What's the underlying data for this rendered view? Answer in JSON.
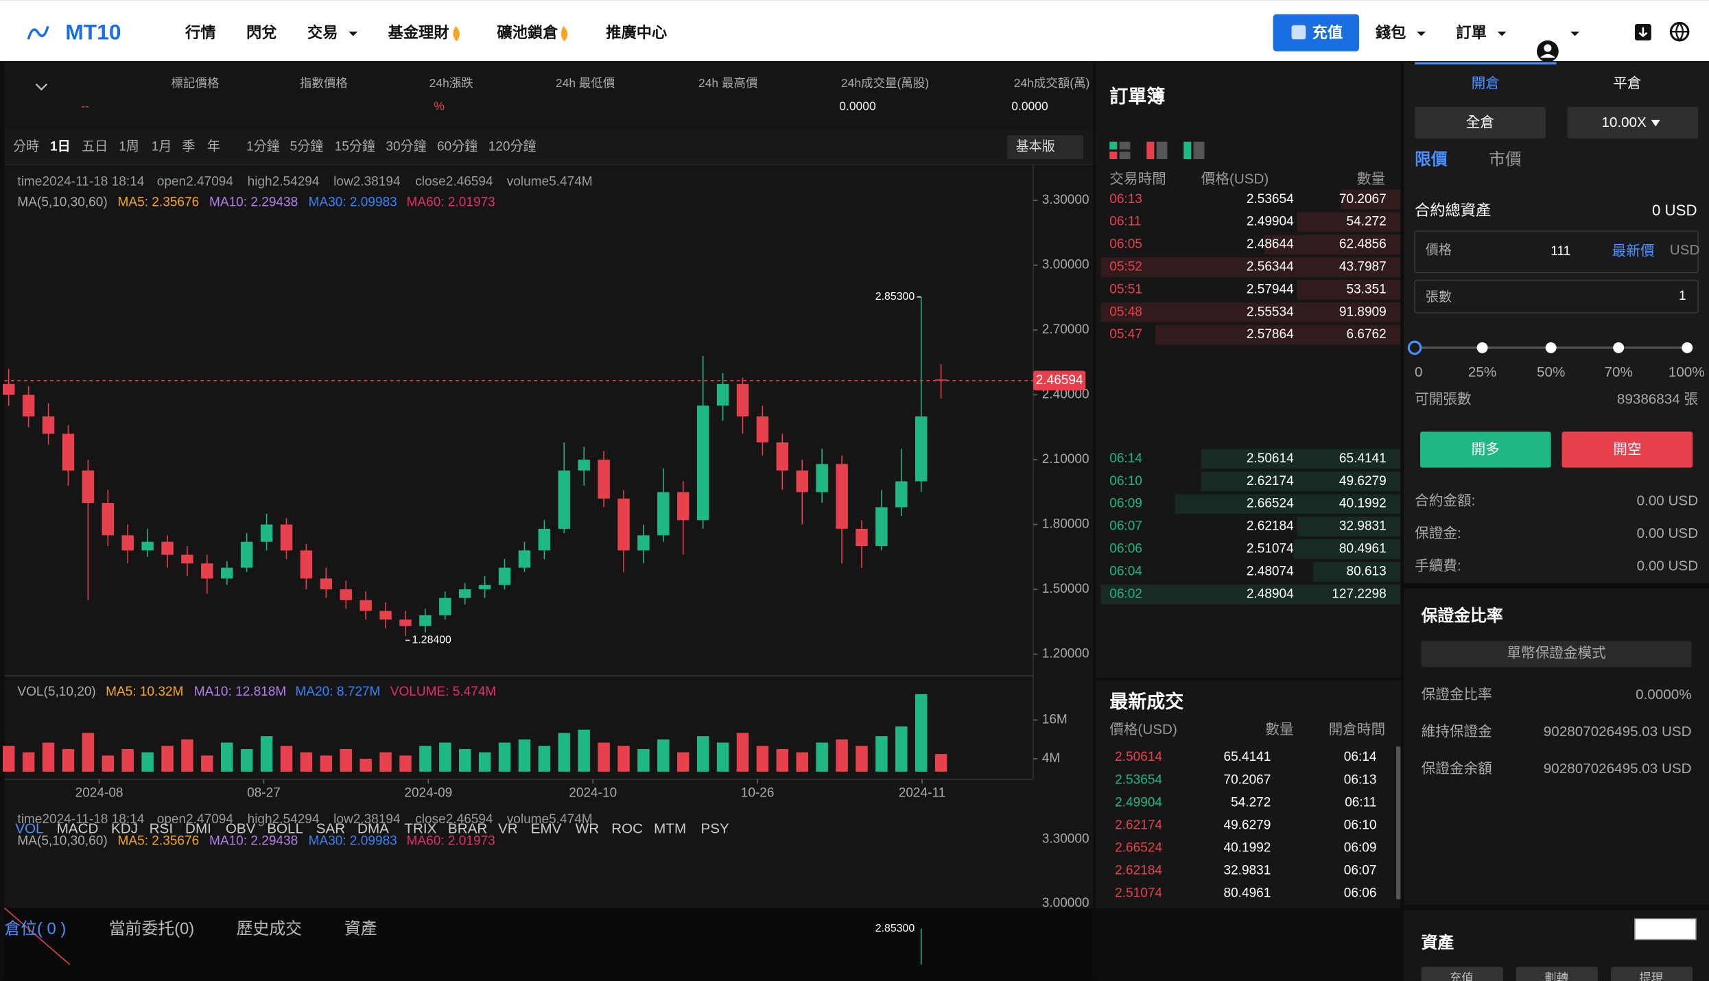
{
  "header": {
    "logo": "MT10",
    "nav": [
      "行情",
      "閃兌",
      "交易",
      "基金理財",
      "礦池鎖倉",
      "推廣中心"
    ],
    "deposit": "充值",
    "wallet": "錢包",
    "orders": "訂單"
  },
  "ticker": {
    "labels": [
      "標記價格",
      "指數價格",
      "24h漲跌",
      "24h 最低價",
      "24h 最高價",
      "24h成交量(萬股)",
      "24h成交額(萬)"
    ],
    "mark_price": "--",
    "change": "%",
    "volume": "0.0000",
    "turnover": "0.0000"
  },
  "toolbar": {
    "intervals": [
      "分時",
      "1日",
      "五日",
      "1周",
      "1月",
      "季",
      "年",
      "1分鐘",
      "5分鐘",
      "15分鐘",
      "30分鐘",
      "60分鐘",
      "120分鐘"
    ],
    "basic_mode": "基本版"
  },
  "chart": {
    "type": "candlestick",
    "info": [
      "time2024-11-18 18:14",
      "open2.47094",
      "high2.54294",
      "low2.38194",
      "close2.46594",
      "volume5.474M"
    ],
    "ma_legend": [
      "MA(5,10,30,60)",
      "MA5: 2.35676",
      "MA10: 2.29438",
      "MA30: 2.09983",
      "MA60: 2.01973"
    ],
    "ohlc": [
      [
        2.45,
        2.52,
        2.35,
        2.4
      ],
      [
        2.4,
        2.44,
        2.25,
        2.3
      ],
      [
        2.3,
        2.36,
        2.17,
        2.22
      ],
      [
        2.22,
        2.26,
        1.98,
        2.05
      ],
      [
        2.05,
        2.1,
        1.45,
        1.9
      ],
      [
        1.9,
        1.96,
        1.7,
        1.75
      ],
      [
        1.75,
        1.8,
        1.62,
        1.68
      ],
      [
        1.68,
        1.78,
        1.65,
        1.72
      ],
      [
        1.72,
        1.75,
        1.6,
        1.66
      ],
      [
        1.66,
        1.7,
        1.56,
        1.62
      ],
      [
        1.62,
        1.66,
        1.48,
        1.55
      ],
      [
        1.55,
        1.63,
        1.52,
        1.6
      ],
      [
        1.6,
        1.76,
        1.58,
        1.72
      ],
      [
        1.72,
        1.85,
        1.68,
        1.8
      ],
      [
        1.8,
        1.83,
        1.64,
        1.68
      ],
      [
        1.68,
        1.71,
        1.5,
        1.55
      ],
      [
        1.55,
        1.6,
        1.46,
        1.5
      ],
      [
        1.5,
        1.54,
        1.41,
        1.45
      ],
      [
        1.45,
        1.49,
        1.36,
        1.4
      ],
      [
        1.4,
        1.44,
        1.32,
        1.36
      ],
      [
        1.36,
        1.4,
        1.284,
        1.33
      ],
      [
        1.33,
        1.41,
        1.3,
        1.38
      ],
      [
        1.38,
        1.49,
        1.36,
        1.46
      ],
      [
        1.46,
        1.53,
        1.43,
        1.5
      ],
      [
        1.5,
        1.56,
        1.46,
        1.52
      ],
      [
        1.52,
        1.64,
        1.5,
        1.6
      ],
      [
        1.6,
        1.72,
        1.58,
        1.68
      ],
      [
        1.68,
        1.82,
        1.64,
        1.78
      ],
      [
        1.78,
        2.18,
        1.76,
        2.05
      ],
      [
        2.05,
        2.16,
        1.98,
        2.1
      ],
      [
        2.1,
        2.14,
        1.88,
        1.92
      ],
      [
        1.92,
        1.96,
        1.58,
        1.68
      ],
      [
        1.68,
        1.8,
        1.62,
        1.75
      ],
      [
        1.75,
        2.06,
        1.72,
        1.95
      ],
      [
        1.95,
        2.0,
        1.66,
        1.82
      ],
      [
        1.82,
        2.58,
        1.78,
        2.35
      ],
      [
        2.35,
        2.5,
        2.28,
        2.45
      ],
      [
        2.45,
        2.48,
        2.22,
        2.3
      ],
      [
        2.3,
        2.35,
        2.12,
        2.18
      ],
      [
        2.18,
        2.22,
        1.96,
        2.05
      ],
      [
        2.05,
        2.1,
        1.8,
        1.95
      ],
      [
        1.95,
        2.15,
        1.9,
        2.08
      ],
      [
        2.08,
        2.12,
        1.62,
        1.78
      ],
      [
        1.78,
        1.82,
        1.6,
        1.7
      ],
      [
        1.7,
        1.96,
        1.68,
        1.88
      ],
      [
        1.88,
        2.15,
        1.84,
        2.0
      ],
      [
        2.0,
        2.853,
        1.95,
        2.3
      ],
      [
        2.47094,
        2.54294,
        2.38194,
        2.46594
      ]
    ],
    "ylim": [
      1.11,
      3.42
    ],
    "yticks": [
      {
        "value": 3.3,
        "label": "3.30000"
      },
      {
        "value": 3.0,
        "label": "3.00000"
      },
      {
        "value": 2.7,
        "label": "2.70000"
      },
      {
        "value": 2.4,
        "label": "2.40000"
      },
      {
        "value": 2.1,
        "label": "2.10000"
      },
      {
        "value": 1.8,
        "label": "1.80000"
      },
      {
        "value": 1.5,
        "label": "1.50000"
      },
      {
        "value": 1.2,
        "label": "1.20000"
      }
    ],
    "high_label": "2.85300",
    "low_label": "1.28400",
    "last_label": "2.46594",
    "up_color": "#1fb883",
    "down_color": "#e8414e",
    "x_labels": [
      "2024-08",
      "08-27",
      "2024-09",
      "2024-10",
      "10-26",
      "2024-11"
    ]
  },
  "volume": {
    "legend": [
      "VOL(5,10,20)",
      "MA5: 10.32M",
      "MA10: 12.818M",
      "MA20: 8.727M",
      "VOLUME: 5.474M"
    ],
    "values": [
      8,
      6,
      9,
      7,
      12,
      5,
      7,
      6,
      8,
      10,
      5,
      9,
      7,
      11,
      8,
      6,
      5,
      7,
      4,
      6,
      5,
      8,
      9,
      7,
      6,
      9,
      10,
      8,
      12,
      13,
      9,
      8,
      7,
      10,
      6,
      11,
      9,
      12,
      8,
      7,
      6,
      9,
      10,
      8,
      11,
      14,
      24,
      5.474
    ],
    "ylim": [
      0,
      28
    ],
    "yticks": [
      {
        "value": 16,
        "label": "16M"
      },
      {
        "value": 4,
        "label": "4M"
      }
    ]
  },
  "indicators": [
    "VOL",
    "MACD",
    "KDJ",
    "RSI",
    "DMI",
    "OBV",
    "BOLL",
    "SAR",
    "DMA",
    "TRIX",
    "BRAR",
    "VR",
    "EMV",
    "WR",
    "ROC",
    "MTM",
    "PSY"
  ],
  "bottom_tabs": [
    "倉位( 0 )",
    "當前委托(0)",
    "歷史成交",
    "資產"
  ],
  "order_book": {
    "title": "訂單簿",
    "headers": [
      "交易時間",
      "價格(USD)",
      "數量"
    ],
    "asks": [
      [
        "06:13",
        "2.53654",
        "70.2067"
      ],
      [
        "06:11",
        "2.49904",
        "54.272"
      ],
      [
        "06:05",
        "2.48644",
        "62.4856"
      ],
      [
        "05:52",
        "2.56344",
        "43.7987"
      ],
      [
        "05:51",
        "2.57944",
        "53.351"
      ],
      [
        "05:48",
        "2.55534",
        "91.8909"
      ],
      [
        "05:47",
        "2.57864",
        "6.6762"
      ]
    ],
    "bids": [
      [
        "06:14",
        "2.50614",
        "65.4141"
      ],
      [
        "06:10",
        "2.62174",
        "49.6279"
      ],
      [
        "06:09",
        "2.66524",
        "40.1992"
      ],
      [
        "06:07",
        "2.62184",
        "32.9831"
      ],
      [
        "06:06",
        "2.51074",
        "80.4961"
      ],
      [
        "06:04",
        "2.48074",
        "80.613"
      ],
      [
        "06:02",
        "2.48904",
        "127.2298"
      ]
    ]
  },
  "trades": {
    "title": "最新成交",
    "headers": [
      "價格(USD)",
      "數量",
      "開倉時間"
    ],
    "rows": [
      [
        "2.50614",
        "65.4141",
        "06:14"
      ],
      [
        "2.53654",
        "70.2067",
        "06:13"
      ],
      [
        "2.49904",
        "54.272",
        "06:11"
      ],
      [
        "2.62174",
        "49.6279",
        "06:10"
      ],
      [
        "2.66524",
        "40.1992",
        "06:09"
      ],
      [
        "2.62184",
        "32.9831",
        "06:07"
      ],
      [
        "2.51074",
        "80.4961",
        "06:06"
      ]
    ],
    "colors": [
      "#e8414e",
      "#1fb883",
      "#1fb883",
      "#e8414e",
      "#e8414e",
      "#e8414e",
      "#e8414e"
    ]
  },
  "trade_panel": {
    "tabs": [
      "開倉",
      "平倉"
    ],
    "margin_mode": "全倉",
    "leverage": "10.00X",
    "order_types": [
      "限價",
      "市價"
    ],
    "total_assets_label": "合約總資產",
    "total_assets": "0 USD",
    "price_label": "價格",
    "price": "111",
    "latest_price": "最新價",
    "price_unit": "USD",
    "qty_label": "張數",
    "qty": "1",
    "slider": [
      "0",
      "25%",
      "50%",
      "70%",
      "100%"
    ],
    "openable_label": "可開張數",
    "openable": "89386834 張",
    "buy": "開多",
    "sell": "開空",
    "info": [
      [
        "合約金額:",
        "0.00 USD"
      ],
      [
        "保證金:",
        "0.00 USD"
      ],
      [
        "手續費:",
        "0.00 USD"
      ]
    ]
  },
  "margin": {
    "title": "保證金比率",
    "mode": "單幣保證金模式",
    "rows": [
      [
        "保證金比率",
        "0.0000%"
      ],
      [
        "維持保證金",
        "902807026495.03 USD"
      ],
      [
        "保證金余額",
        "902807026495.03 USD"
      ]
    ]
  },
  "assets": {
    "title": "資產",
    "buttons": [
      "充值",
      "劃轉",
      "提現"
    ]
  }
}
